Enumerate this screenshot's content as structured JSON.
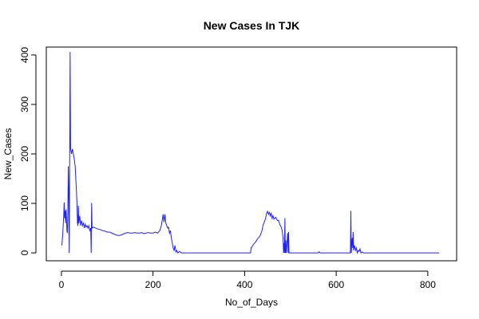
{
  "chart_data": {
    "type": "line",
    "title": "New Cases In TJK",
    "xlabel": "No_of_Days",
    "ylabel": "New_Cases",
    "xlim": [
      -33,
      863
    ],
    "ylim": [
      -16,
      416
    ],
    "x_ticks": [
      0,
      200,
      400,
      600,
      800
    ],
    "y_ticks": [
      0,
      100,
      200,
      300,
      400
    ],
    "grid": false,
    "legend": "none",
    "line_color": "#1f1fff",
    "series": [
      {
        "points": [
          [
            1,
            15
          ],
          [
            3,
            40
          ],
          [
            5,
            75
          ],
          [
            6,
            102
          ],
          [
            7,
            70
          ],
          [
            8,
            85
          ],
          [
            9,
            60
          ],
          [
            10,
            88
          ],
          [
            11,
            70
          ],
          [
            12,
            45
          ],
          [
            13,
            40
          ],
          [
            14,
            80
          ],
          [
            15,
            175
          ],
          [
            16,
            130
          ],
          [
            17,
            0
          ],
          [
            18,
            180
          ],
          [
            19,
            406
          ],
          [
            20,
            210
          ],
          [
            21,
            205
          ],
          [
            22,
            200
          ],
          [
            24,
            210
          ],
          [
            26,
            200
          ],
          [
            28,
            190
          ],
          [
            30,
            175
          ],
          [
            32,
            140
          ],
          [
            34,
            100
          ],
          [
            35,
            60
          ],
          [
            36,
            55
          ],
          [
            37,
            95
          ],
          [
            38,
            60
          ],
          [
            40,
            75
          ],
          [
            42,
            55
          ],
          [
            44,
            65
          ],
          [
            46,
            55
          ],
          [
            48,
            60
          ],
          [
            50,
            50
          ],
          [
            52,
            58
          ],
          [
            54,
            52
          ],
          [
            56,
            55
          ],
          [
            58,
            50
          ],
          [
            60,
            55
          ],
          [
            62,
            45
          ],
          [
            64,
            50
          ],
          [
            65,
            0
          ],
          [
            66,
            101
          ],
          [
            67,
            50
          ],
          [
            70,
            52
          ],
          [
            75,
            50
          ],
          [
            80,
            48
          ],
          [
            85,
            47
          ],
          [
            90,
            45
          ],
          [
            95,
            44
          ],
          [
            100,
            42
          ],
          [
            105,
            42
          ],
          [
            110,
            40
          ],
          [
            115,
            38
          ],
          [
            120,
            36
          ],
          [
            125,
            35
          ],
          [
            130,
            36
          ],
          [
            135,
            38
          ],
          [
            140,
            40
          ],
          [
            145,
            41
          ],
          [
            150,
            40
          ],
          [
            155,
            40
          ],
          [
            160,
            41
          ],
          [
            165,
            40
          ],
          [
            170,
            40
          ],
          [
            175,
            41
          ],
          [
            180,
            39
          ],
          [
            185,
            40
          ],
          [
            190,
            41
          ],
          [
            195,
            40
          ],
          [
            200,
            40
          ],
          [
            205,
            42
          ],
          [
            210,
            40
          ],
          [
            215,
            45
          ],
          [
            218,
            55
          ],
          [
            220,
            65
          ],
          [
            222,
            78
          ],
          [
            224,
            62
          ],
          [
            226,
            78
          ],
          [
            228,
            60
          ],
          [
            230,
            55
          ],
          [
            232,
            50
          ],
          [
            234,
            52
          ],
          [
            236,
            40
          ],
          [
            238,
            45
          ],
          [
            240,
            30
          ],
          [
            242,
            20
          ],
          [
            244,
            10
          ],
          [
            246,
            5
          ],
          [
            248,
            15
          ],
          [
            250,
            2
          ],
          [
            252,
            5
          ],
          [
            254,
            0
          ],
          [
            258,
            3
          ],
          [
            262,
            0
          ],
          [
            270,
            0
          ],
          [
            280,
            0
          ],
          [
            300,
            0
          ],
          [
            350,
            0
          ],
          [
            400,
            0
          ],
          [
            413,
            0
          ],
          [
            414,
            10
          ],
          [
            416,
            12
          ],
          [
            418,
            15
          ],
          [
            420,
            18
          ],
          [
            422,
            20
          ],
          [
            424,
            22
          ],
          [
            426,
            25
          ],
          [
            428,
            28
          ],
          [
            430,
            30
          ],
          [
            432,
            32
          ],
          [
            434,
            35
          ],
          [
            436,
            40
          ],
          [
            438,
            45
          ],
          [
            440,
            55
          ],
          [
            442,
            60
          ],
          [
            444,
            65
          ],
          [
            446,
            70
          ],
          [
            448,
            80
          ],
          [
            450,
            84
          ],
          [
            452,
            78
          ],
          [
            454,
            82
          ],
          [
            456,
            75
          ],
          [
            458,
            80
          ],
          [
            460,
            70
          ],
          [
            462,
            75
          ],
          [
            464,
            68
          ],
          [
            466,
            70
          ],
          [
            468,
            72
          ],
          [
            470,
            68
          ],
          [
            472,
            65
          ],
          [
            474,
            66
          ],
          [
            476,
            60
          ],
          [
            478,
            55
          ],
          [
            480,
            52
          ],
          [
            482,
            45
          ],
          [
            484,
            30
          ],
          [
            485,
            0
          ],
          [
            486,
            20
          ],
          [
            487,
            0
          ],
          [
            488,
            70
          ],
          [
            489,
            0
          ],
          [
            490,
            25
          ],
          [
            491,
            0
          ],
          [
            494,
            40
          ],
          [
            495,
            0
          ],
          [
            496,
            42
          ],
          [
            497,
            0
          ],
          [
            500,
            0
          ],
          [
            510,
            0
          ],
          [
            540,
            0
          ],
          [
            560,
            0
          ],
          [
            563,
            2
          ],
          [
            565,
            0
          ],
          [
            600,
            0
          ],
          [
            631,
            0
          ],
          [
            632,
            85
          ],
          [
            633,
            0
          ],
          [
            634,
            20
          ],
          [
            635,
            30
          ],
          [
            636,
            10
          ],
          [
            637,
            42
          ],
          [
            638,
            5
          ],
          [
            640,
            15
          ],
          [
            642,
            5
          ],
          [
            644,
            10
          ],
          [
            646,
            0
          ],
          [
            648,
            5
          ],
          [
            650,
            3
          ],
          [
            652,
            8
          ],
          [
            654,
            0
          ],
          [
            656,
            2
          ],
          [
            660,
            0
          ],
          [
            700,
            0
          ],
          [
            750,
            0
          ],
          [
            800,
            0
          ],
          [
            825,
            0
          ]
        ]
      }
    ]
  }
}
